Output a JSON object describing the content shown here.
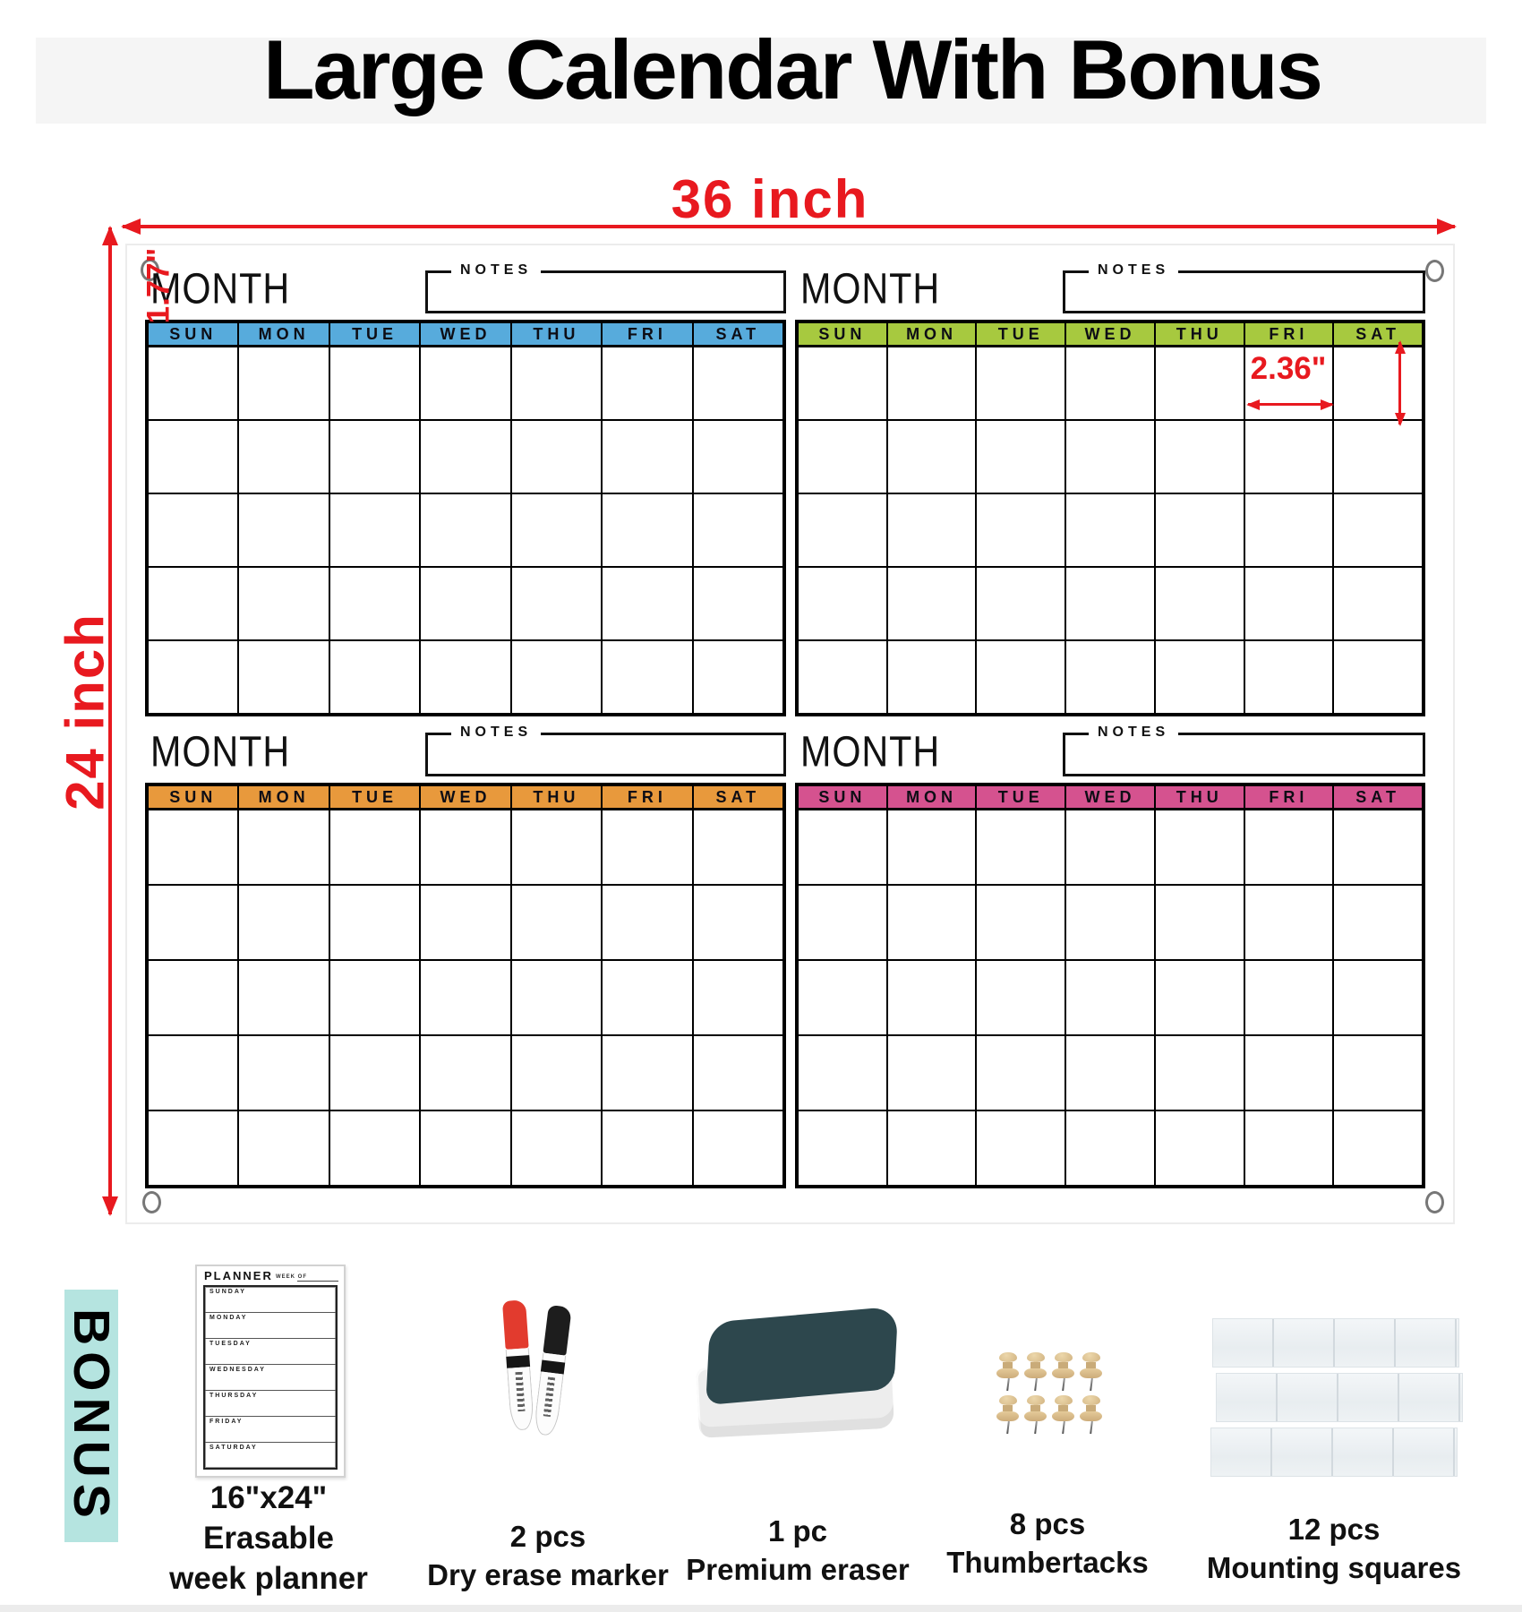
{
  "title": "Large Calendar With Bonus",
  "accent_red": "#e8191f",
  "dimensions": {
    "width_label": "36 inch",
    "height_label": "24 inch",
    "cell_width_label": "2.36\"",
    "cell_height_label": "1.77\""
  },
  "calendar": {
    "month_label": "MONTH",
    "notes_label": "NOTES",
    "day_headers": [
      "SUN",
      "MON",
      "TUE",
      "WED",
      "THU",
      "FRI",
      "SAT"
    ],
    "weeks_per_month": 5,
    "months": [
      {
        "position": "top-left",
        "header_color": "#57abdc"
      },
      {
        "position": "top-right",
        "header_color": "#a7c93f"
      },
      {
        "position": "bottom-left",
        "header_color": "#e8993c"
      },
      {
        "position": "bottom-right",
        "header_color": "#d5528f"
      }
    ]
  },
  "bonus": {
    "label": "BONUS",
    "band_color": "#b5e4e0",
    "items": [
      {
        "name": "week-planner",
        "caption_lines": [
          "16\"x24\"",
          "Erasable",
          "week planner"
        ],
        "planner": {
          "title": "PLANNER",
          "week_of_label": "WEEK OF",
          "days": [
            "SUNDAY",
            "MONDAY",
            "TUESDAY",
            "WEDNESDAY",
            "THURSDAY",
            "FRIDAY",
            "SATURDAY"
          ]
        }
      },
      {
        "name": "dry-erase-markers",
        "caption_lines": [
          "2 pcs",
          "Dry erase marker"
        ],
        "colors": [
          "#e23b2e",
          "#1d1d1d"
        ]
      },
      {
        "name": "premium-eraser",
        "caption_lines": [
          "1 pc",
          "Premium eraser"
        ],
        "top_color": "#2d474d"
      },
      {
        "name": "thumbtacks",
        "caption_lines": [
          "8 pcs",
          "Thumbertacks"
        ],
        "count": 8,
        "color": "#d9bd8e"
      },
      {
        "name": "mounting-squares",
        "caption_lines": [
          "12 pcs",
          "Mounting squares"
        ],
        "count": 12
      }
    ]
  }
}
